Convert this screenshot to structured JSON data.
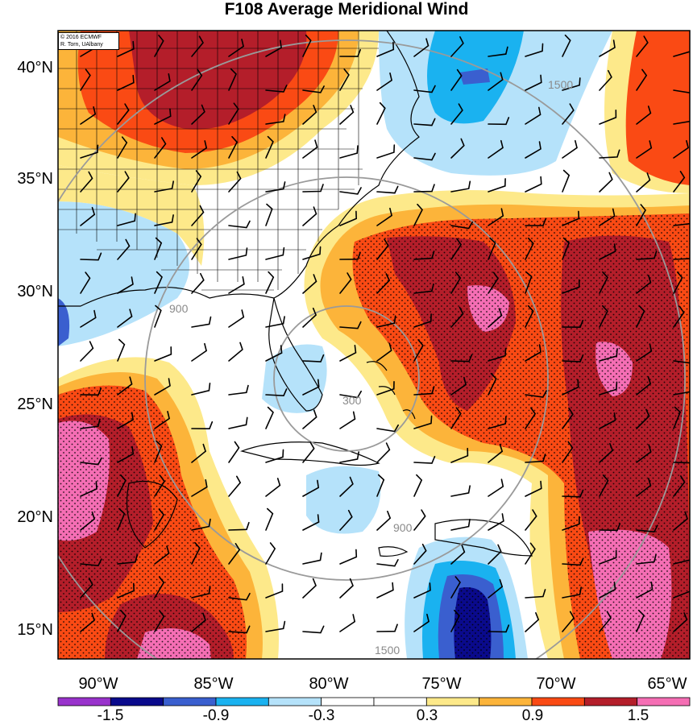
{
  "title": "F108 Average Meridional Wind",
  "credit": {
    "line1": "© 2016 ECMWF",
    "line2": "R. Torn, UAlbany"
  },
  "axes": {
    "lat_labels": [
      "40°N",
      "35°N",
      "30°N",
      "25°N",
      "20°N",
      "15°N"
    ],
    "lon_labels": [
      "90°W",
      "85°W",
      "80°W",
      "75°W",
      "70°W",
      "65°W"
    ]
  },
  "colorbar": {
    "labels": [
      "-1.5",
      "-0.9",
      "-0.3",
      "0.3",
      "0.9",
      "1.5"
    ],
    "colors": [
      "#9933cc",
      "#0a0a8c",
      "#3a5fcf",
      "#1ab2f0",
      "#b5e2fa",
      "#ffffff",
      "#ffffff",
      "#fde98a",
      "#fcb43a",
      "#fa4a14",
      "#b41e2a",
      "#f56eb4"
    ]
  },
  "contour_labels": [
    "300",
    "900",
    "1500"
  ]
}
